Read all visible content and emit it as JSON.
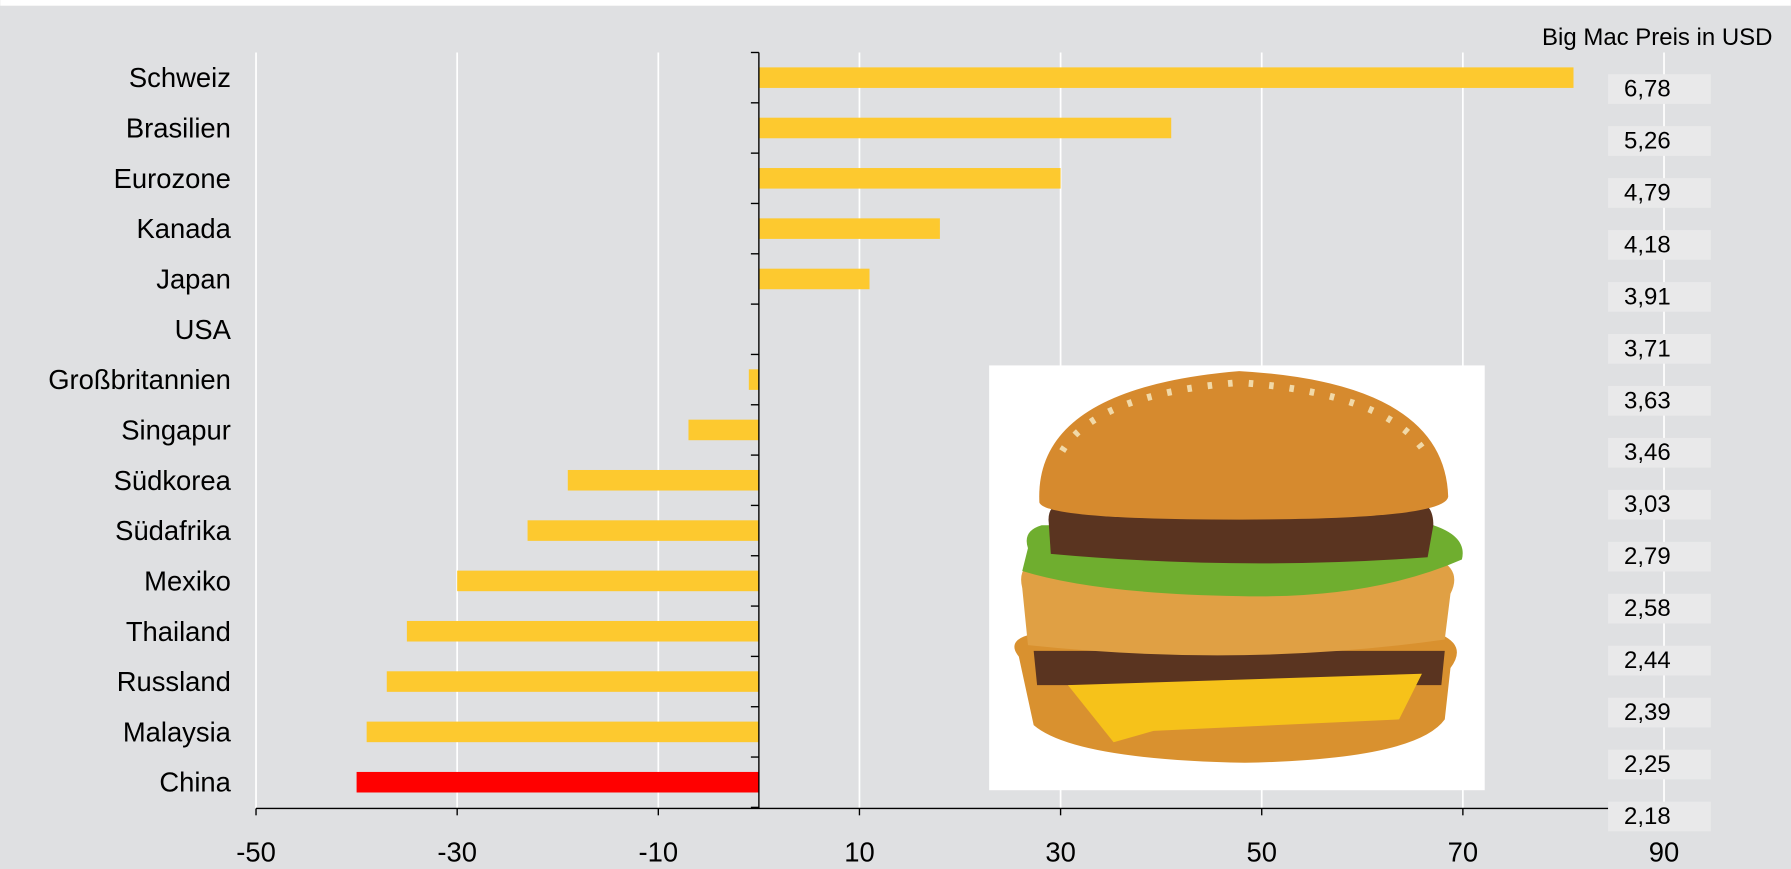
{
  "chart_data": {
    "type": "hbar",
    "categories": [
      "Schweiz",
      "Brasilien",
      "Eurozone",
      "Kanada",
      "Japan",
      "USA",
      "Großbritannien",
      "Singapur",
      "Südkorea",
      "Südafrika",
      "Mexiko",
      "Thailand",
      "Russland",
      "Malaysia",
      "China"
    ],
    "values": [
      81,
      41,
      30,
      18,
      11,
      0,
      -1,
      -7,
      -19,
      -23,
      -30,
      -35,
      -37,
      -39,
      -40
    ],
    "colors": [
      "#fdc92f",
      "#fdc92f",
      "#fdc92f",
      "#fdc92f",
      "#fdc92f",
      "#fdc92f",
      "#fdc92f",
      "#fdc92f",
      "#fdc92f",
      "#fdc92f",
      "#fdc92f",
      "#fdc92f",
      "#fdc92f",
      "#fdc92f",
      "#ff0000"
    ],
    "xlim": [
      -50,
      90
    ],
    "xticks": [
      -50,
      -30,
      -10,
      10,
      30,
      50,
      70,
      90
    ],
    "grid": true,
    "price_title": "Big Mac Preis in USD",
    "prices": [
      6.78,
      5.26,
      4.79,
      4.18,
      3.91,
      3.71,
      3.63,
      3.46,
      3.03,
      2.79,
      2.58,
      2.44,
      2.39,
      2.25,
      2.18
    ],
    "price_labels": [
      "6,78",
      "5,26",
      "4,79",
      "4,18",
      "3,91",
      "3,71",
      "3,63",
      "3,46",
      "3,03",
      "2,79",
      "2,58",
      "2,44",
      "2,39",
      "2,25",
      "2,18"
    ]
  }
}
